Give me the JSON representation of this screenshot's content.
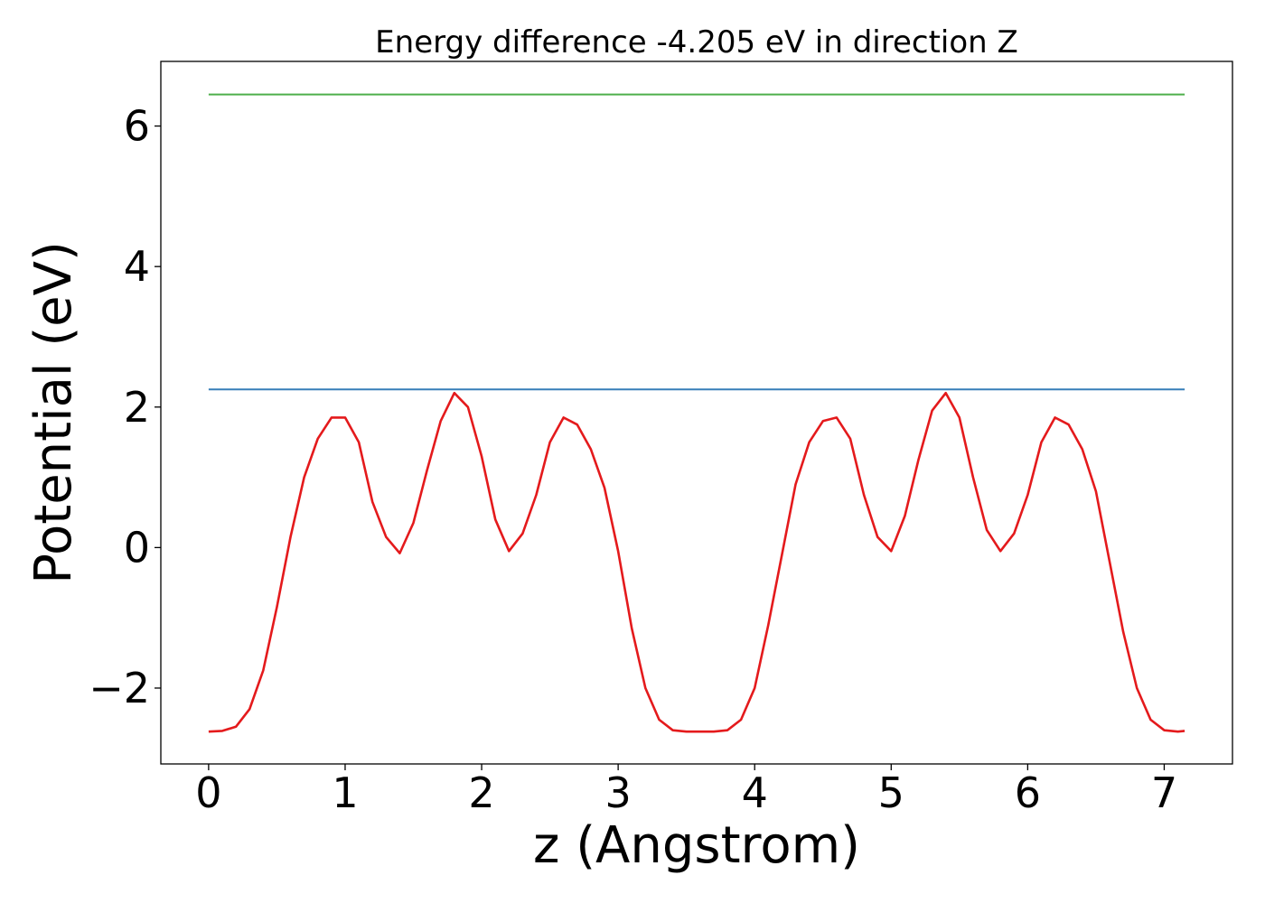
{
  "chart_data": {
    "type": "line",
    "title": "Energy difference -4.205 eV in direction Z",
    "xlabel": "z (Angstrom)",
    "ylabel": "Potential (eV)",
    "xlim": [
      -0.35,
      7.5
    ],
    "ylim": [
      -3.08,
      6.92
    ],
    "xticks": [
      0,
      1,
      2,
      3,
      4,
      5,
      6,
      7
    ],
    "xtick_labels": [
      "0",
      "1",
      "2",
      "3",
      "4",
      "5",
      "6",
      "7"
    ],
    "yticks": [
      -2,
      0,
      2,
      4,
      6
    ],
    "ytick_labels": [
      "−2",
      "0",
      "2",
      "4",
      "6"
    ],
    "grid": false,
    "series": [
      {
        "color": "#e41a1c",
        "x": [
          0,
          0.1,
          0.2,
          0.3,
          0.4,
          0.5,
          0.6,
          0.7,
          0.8,
          0.9,
          1.0,
          1.1,
          1.2,
          1.3,
          1.4,
          1.5,
          1.6,
          1.7,
          1.8,
          1.9,
          2.0,
          2.1,
          2.2,
          2.3,
          2.4,
          2.5,
          2.6,
          2.7,
          2.8,
          2.9,
          3.0,
          3.1,
          3.2,
          3.3,
          3.4,
          3.5,
          3.6,
          3.7,
          3.8,
          3.9,
          4.0,
          4.1,
          4.2,
          4.3,
          4.4,
          4.5,
          4.6,
          4.7,
          4.8,
          4.9,
          5.0,
          5.1,
          5.2,
          5.3,
          5.4,
          5.5,
          5.6,
          5.7,
          5.8,
          5.9,
          6.0,
          6.1,
          6.2,
          6.3,
          6.4,
          6.5,
          6.6,
          6.7,
          6.8,
          6.9,
          7.0,
          7.1,
          7.15
        ],
        "y": [
          -2.62,
          -2.61,
          -2.55,
          -2.3,
          -1.75,
          -0.85,
          0.15,
          1.0,
          1.55,
          1.85,
          1.85,
          1.5,
          0.65,
          0.15,
          -0.08,
          0.35,
          1.1,
          1.8,
          2.2,
          2.0,
          1.3,
          0.4,
          -0.05,
          0.2,
          0.75,
          1.5,
          1.85,
          1.75,
          1.4,
          0.85,
          -0.05,
          -1.15,
          -2.0,
          -2.45,
          -2.6,
          -2.62,
          -2.62,
          -2.62,
          -2.6,
          -2.45,
          -2.0,
          -1.1,
          -0.1,
          0.9,
          1.5,
          1.8,
          1.85,
          1.55,
          0.75,
          0.15,
          -0.05,
          0.45,
          1.25,
          1.95,
          2.2,
          1.85,
          1.0,
          0.25,
          -0.05,
          0.2,
          0.75,
          1.5,
          1.85,
          1.75,
          1.4,
          0.8,
          -0.2,
          -1.2,
          -2.0,
          -2.45,
          -2.6,
          -2.62,
          -2.61
        ]
      },
      {
        "color": "#377eb8",
        "x": [
          0,
          7.15
        ],
        "y": [
          2.25,
          2.25
        ]
      },
      {
        "color": "#4daf4a",
        "x": [
          0,
          7.15
        ],
        "y": [
          6.45,
          6.45
        ]
      }
    ]
  }
}
